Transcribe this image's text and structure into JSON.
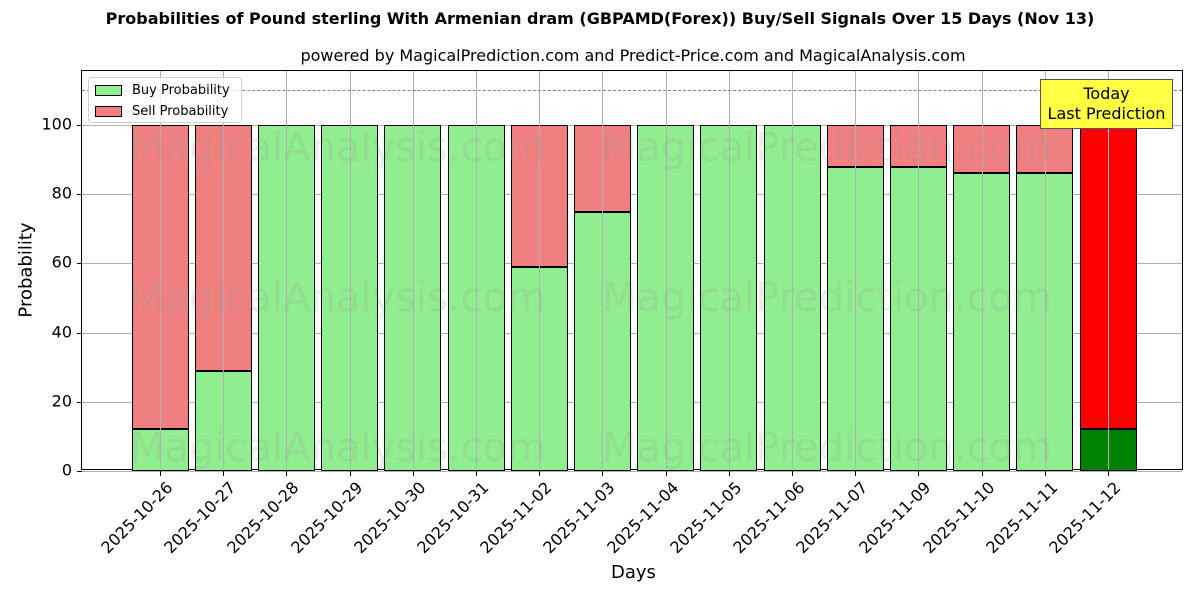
{
  "chart_data": {
    "type": "bar",
    "stacked": true,
    "title": "Probabilities of Pound sterling With Armenian dram (GBPAMD(Forex)) Buy/Sell Signals Over 15 Days (Nov 13)",
    "subtitle": "powered by MagicalPrediction.com and Predict-Price.com and MagicalAnalysis.com",
    "xlabel": "Days",
    "ylabel": "Probability",
    "ylim": [
      0,
      115
    ],
    "yticks": [
      0,
      20,
      40,
      60,
      80,
      100
    ],
    "grid": true,
    "legend_position": "upper left",
    "reference_line": {
      "y": 110,
      "style": "dashed",
      "color": "#808080"
    },
    "categories": [
      "2025-10-26",
      "2025-10-27",
      "2025-10-28",
      "2025-10-29",
      "2025-10-30",
      "2025-10-31",
      "2025-11-02",
      "2025-11-03",
      "2025-11-04",
      "2025-11-05",
      "2025-11-06",
      "2025-11-07",
      "2025-11-09",
      "2025-11-10",
      "2025-11-11",
      "2025-11-12"
    ],
    "series": [
      {
        "name": "Buy Probability",
        "color": "#90ee90",
        "values": [
          12,
          29,
          100,
          100,
          100,
          100,
          59,
          75,
          100,
          100,
          100,
          88,
          88,
          86,
          86,
          12
        ]
      },
      {
        "name": "Sell Probability",
        "color": "#f08080",
        "values": [
          88,
          71,
          0,
          0,
          0,
          0,
          41,
          25,
          0,
          0,
          0,
          12,
          12,
          14,
          14,
          88
        ]
      }
    ],
    "highlight": {
      "index": 15,
      "buy_color": "#008000",
      "sell_color": "#ff0000"
    },
    "annotation": {
      "text_line1": "Today",
      "text_line2": "Last Prediction",
      "background": "#ffff44"
    }
  },
  "legend": {
    "buy_label": "Buy Probability",
    "sell_label": "Sell Probability"
  },
  "watermarks": [
    "MagicalAnalysis.com",
    "MagicalPrediction.com"
  ]
}
